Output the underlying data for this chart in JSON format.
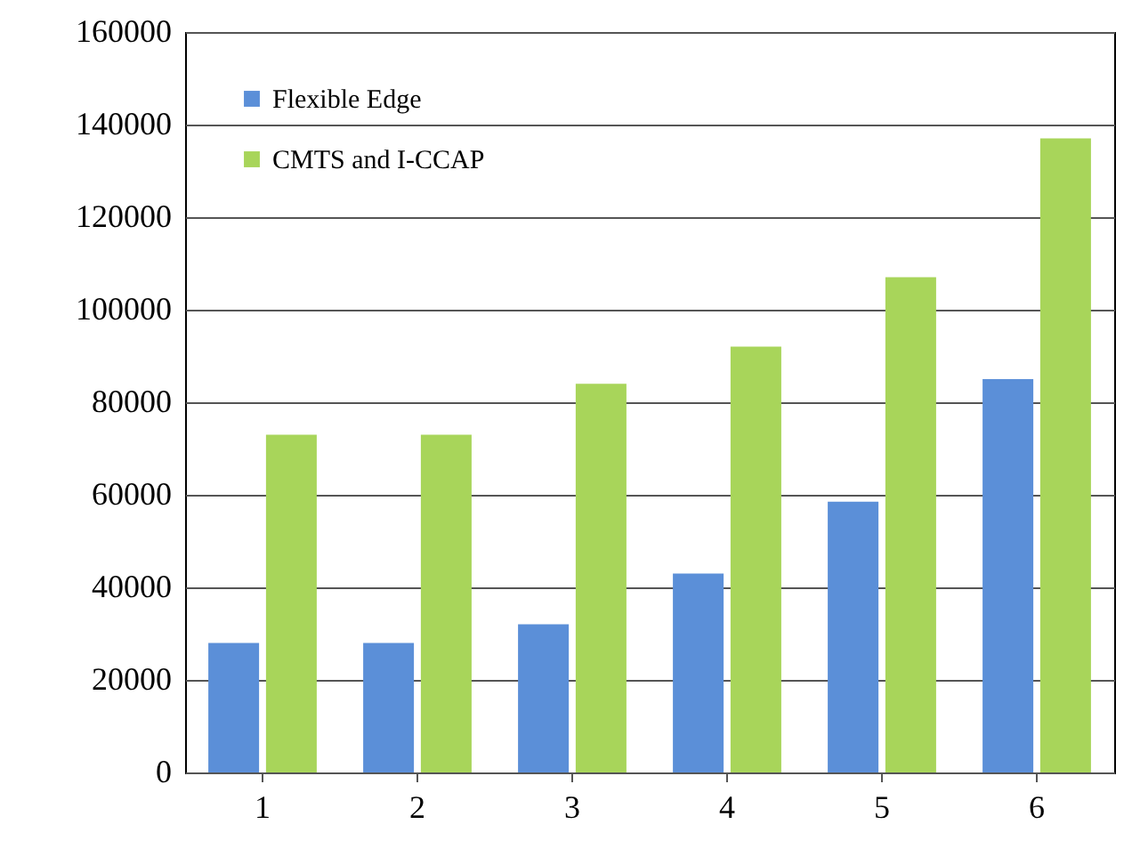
{
  "chart_data": {
    "type": "bar",
    "categories": [
      "1",
      "2",
      "3",
      "4",
      "5",
      "6"
    ],
    "series": [
      {
        "name": "Flexible Edge",
        "color": "#5b8fd8",
        "values": [
          28000,
          28000,
          32000,
          43000,
          58500,
          85000
        ]
      },
      {
        "name": "CMTS and I-CCAP",
        "color": "#a8d55a",
        "values": [
          73000,
          73000,
          84000,
          92000,
          107000,
          137000
        ]
      }
    ],
    "ylim": [
      0,
      160000
    ],
    "yticks": [
      0,
      20000,
      40000,
      60000,
      80000,
      100000,
      120000,
      140000,
      160000
    ],
    "grid": "y",
    "legend": "top left"
  }
}
